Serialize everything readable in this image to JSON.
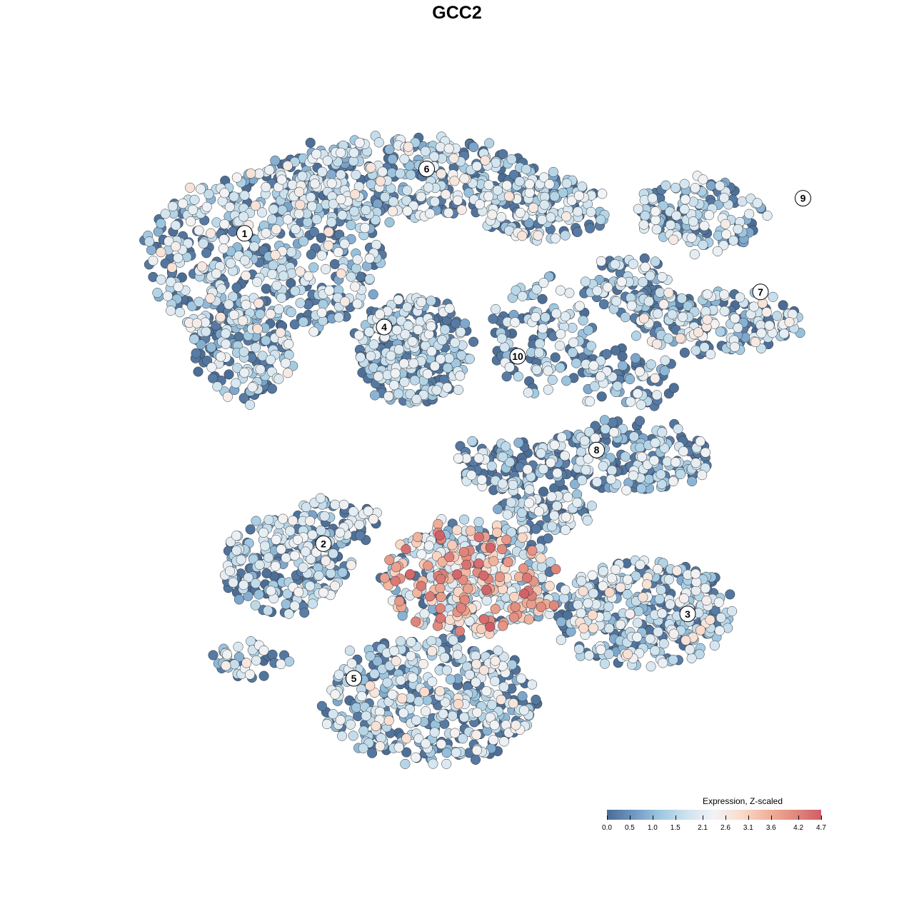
{
  "chart_data": {
    "type": "scatter",
    "title": "GCC2",
    "colorbar": {
      "title": "Expression, Z-scaled",
      "ticks": [
        "0.0",
        "0.5",
        "1.0",
        "1.5",
        "2.1",
        "2.6",
        "3.1",
        "3.6",
        "4.2",
        "4.7"
      ],
      "range": [
        0.0,
        4.7
      ],
      "colors": [
        "#4a6b93",
        "#6f98c3",
        "#9fc8e0",
        "#cfe3ef",
        "#f2f3f5",
        "#f9dccd",
        "#f0b39c",
        "#e28a7e",
        "#cf5e68"
      ]
    },
    "clusters": [
      {
        "label": "1",
        "cx": -3.5,
        "cy": 3.6
      },
      {
        "label": "2",
        "cx": -2.2,
        "cy": -1.7
      },
      {
        "label": "3",
        "cx": 3.8,
        "cy": -2.9
      },
      {
        "label": "4",
        "cx": -1.2,
        "cy": 2.0
      },
      {
        "label": "5",
        "cx": -1.7,
        "cy": -4.0
      },
      {
        "label": "6",
        "cx": -0.5,
        "cy": 4.7
      },
      {
        "label": "7",
        "cx": 5.0,
        "cy": 2.6
      },
      {
        "label": "8",
        "cx": 2.3,
        "cy": -0.1
      },
      {
        "label": "9",
        "cx": 5.7,
        "cy": 4.2
      },
      {
        "label": "10",
        "cx": 1.0,
        "cy": 1.5
      }
    ]
  }
}
